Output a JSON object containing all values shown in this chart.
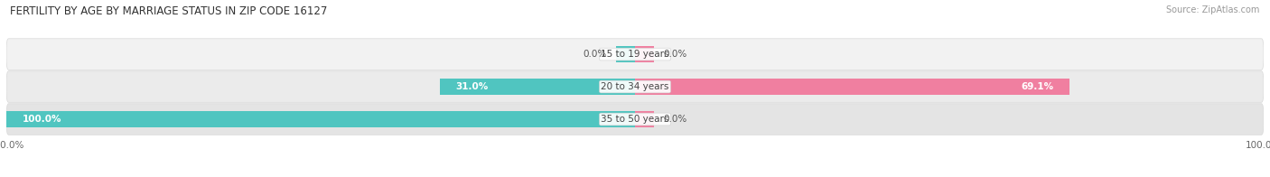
{
  "title": "FERTILITY BY AGE BY MARRIAGE STATUS IN ZIP CODE 16127",
  "source": "Source: ZipAtlas.com",
  "categories": [
    "15 to 19 years",
    "20 to 34 years",
    "35 to 50 years"
  ],
  "married": [
    0.0,
    31.0,
    100.0
  ],
  "unmarried": [
    0.0,
    69.1,
    0.0
  ],
  "married_color": "#50c5c0",
  "unmarried_color": "#f07fa0",
  "married_stub": 3.0,
  "unmarried_stub": 3.0,
  "bar_height": 0.52,
  "figsize": [
    14.06,
    1.96
  ],
  "dpi": 100,
  "title_fontsize": 8.5,
  "source_fontsize": 7,
  "label_fontsize": 7.5,
  "cat_fontsize": 7.5,
  "axis_fontsize": 7.5,
  "legend_fontsize": 7.5,
  "row_bg_colors": [
    "#f2f2f2",
    "#ebebeb",
    "#e4e4e4"
  ],
  "row_border_color": "#d8d8d8",
  "label_inside_color": "#ffffff",
  "label_outside_color": "#555555"
}
